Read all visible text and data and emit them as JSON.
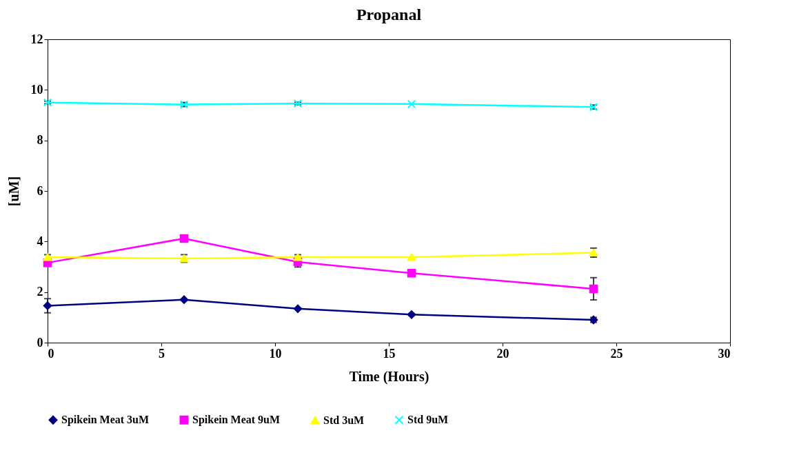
{
  "chart_data": {
    "type": "line",
    "title": "Propanal",
    "xlabel": "Time (Hours)",
    "ylabel": "[uM]",
    "x": [
      0,
      6,
      11,
      16,
      24
    ],
    "xlim": [
      0,
      30
    ],
    "xticks": [
      0,
      5,
      10,
      15,
      20,
      25,
      30
    ],
    "ylim": [
      0,
      12
    ],
    "yticks": [
      0,
      2,
      4,
      6,
      8,
      10,
      12
    ],
    "grid": false,
    "legend": "bottom",
    "line_style": "solid",
    "series": [
      {
        "name": "Spikein Meat 3uM",
        "color": "#000080",
        "marker": "diamond",
        "values": [
          1.46,
          1.7,
          1.34,
          1.11,
          0.9
        ],
        "errors": [
          0.28,
          null,
          null,
          0.04,
          0.1
        ]
      },
      {
        "name": "Spikein Meat 9uM",
        "color": "#ff00ff",
        "marker": "square",
        "values": [
          3.16,
          4.12,
          3.19,
          2.75,
          2.13
        ],
        "errors": [
          null,
          null,
          0.2,
          null,
          0.44
        ]
      },
      {
        "name": "Std 3uM",
        "color": "#ffff00",
        "marker": "triangle",
        "values": [
          3.38,
          3.33,
          3.38,
          3.38,
          3.56
        ],
        "errors": [
          0.1,
          0.15,
          0.1,
          null,
          0.18
        ]
      },
      {
        "name": "Std 9uM",
        "color": "#00ffff",
        "marker": "cross",
        "values": [
          9.5,
          9.42,
          9.46,
          9.44,
          9.32
        ],
        "errors": [
          0.05,
          0.08,
          0.05,
          null,
          0.08
        ]
      }
    ]
  }
}
